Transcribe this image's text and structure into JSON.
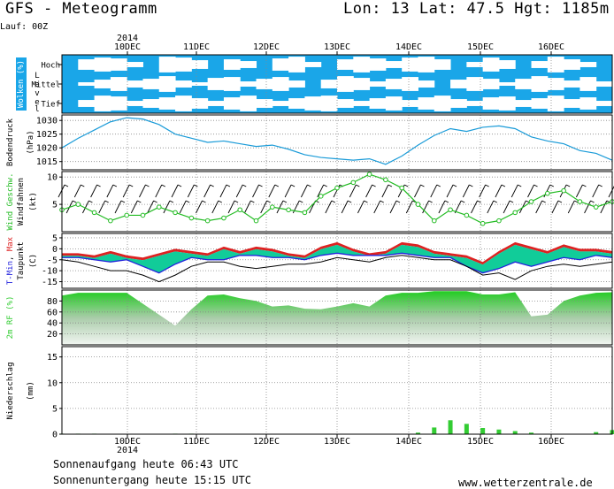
{
  "header": {
    "title": "GFS - Meteogramm",
    "location": "Lon: 13 Lat: 47.5 Hgt: 1185m",
    "run": "Lauf: 00Z"
  },
  "footer": {
    "sunrise": "Sonnenaufgang heute 06:43 UTC",
    "sunset": "Sonnenuntergang heute 15:15 UTC",
    "site": "www.wetterzentrale.de"
  },
  "time_axis": {
    "year": "2014",
    "days": [
      "10DEC",
      "11DEC",
      "12DEC",
      "13DEC",
      "14DEC",
      "15DEC",
      "16DEC"
    ],
    "range_hours": [
      0,
      204
    ]
  },
  "colors": {
    "cloud_bg": "#1aa6e8",
    "cloud": "#ffffff",
    "pressure": "#1a9bd8",
    "wind": "#22bb22",
    "tmax": "#dd2222",
    "tmin": "#2222dd",
    "temp_fill": "#11cc99",
    "rh_fill": "#33cc33",
    "precip": "#33cc33"
  },
  "chart_data": [
    {
      "type": "heatmap",
      "panel": "clouds",
      "ylabel": "Wolken (%)",
      "side_label": "Level",
      "levels": [
        "Hoch",
        "Mittel",
        "Tief"
      ],
      "x": [
        0,
        6,
        12,
        18,
        24,
        30,
        36,
        42,
        48,
        54,
        60,
        66,
        72,
        78,
        84,
        90,
        96,
        102,
        108,
        114,
        120,
        126,
        132,
        138,
        144,
        150,
        156,
        162,
        168,
        174,
        180,
        186,
        192,
        198
      ],
      "clear_fraction": {
        "Hoch": [
          0,
          0.6,
          0.8,
          0.7,
          0.3,
          0,
          0.9,
          0.8,
          0.5,
          0,
          0.6,
          0.4,
          0,
          0.7,
          0.9,
          0.3,
          0,
          0.6,
          0.9,
          0.7,
          0.4,
          0.8,
          0.9,
          0.6,
          0,
          0.3,
          0.8,
          0.5,
          0,
          0.4,
          0.9,
          0.6,
          0.3,
          0
        ],
        "Mittel": [
          0,
          0.2,
          0.5,
          0.8,
          0.4,
          0.6,
          0.9,
          0.4,
          0.2,
          0.7,
          0.8,
          0.3,
          0.6,
          0.8,
          0.4,
          0,
          0.5,
          0.9,
          0.7,
          0.3,
          0.6,
          0.8,
          0.4,
          0,
          0.5,
          0.8,
          0.6,
          0.2,
          0.6,
          0.9,
          0.7,
          0.4,
          0.8,
          0.3
        ],
        "Tief": [
          0,
          0.4,
          0.9,
          0.8,
          0.3,
          0.5,
          0.7,
          0.9,
          0.6,
          0.3,
          0.7,
          0.9,
          0.5,
          0.3,
          0.6,
          0.8,
          0.9,
          0.5,
          0.3,
          0.6,
          0.8,
          0.4,
          0.7,
          0.9,
          0.5,
          0.3,
          0.7,
          0.8,
          0.4,
          0.6,
          0.9,
          0.5,
          0.7,
          0.3
        ]
      }
    },
    {
      "type": "line",
      "panel": "pressure",
      "ylabel": "Bodendruck (hPa)",
      "ylim": [
        1012,
        1032
      ],
      "yticks": [
        1015,
        1020,
        1025,
        1030
      ],
      "x": [
        0,
        6,
        12,
        18,
        24,
        30,
        36,
        42,
        48,
        54,
        60,
        66,
        72,
        78,
        84,
        90,
        96,
        102,
        108,
        114,
        120,
        126,
        132,
        138,
        144,
        150,
        156,
        162,
        168,
        174,
        180,
        186,
        192,
        198,
        204
      ],
      "values": [
        1020,
        1023.5,
        1026.5,
        1029.5,
        1031,
        1030.5,
        1028.5,
        1025,
        1023.5,
        1022,
        1022.5,
        1021.5,
        1020.5,
        1021,
        1019.5,
        1017.5,
        1016.5,
        1016,
        1015.5,
        1016,
        1014,
        1017,
        1021,
        1024.5,
        1027,
        1026,
        1027.5,
        1028,
        1027,
        1024,
        1022.5,
        1021.5,
        1019,
        1018,
        1015.5
      ]
    },
    {
      "type": "line",
      "panel": "wind",
      "ylabel": "Wind Geschw. Windfahnen (kt)",
      "ylim": [
        0,
        11
      ],
      "yticks": [
        5,
        10
      ],
      "x": [
        0,
        6,
        12,
        18,
        24,
        30,
        36,
        42,
        48,
        54,
        60,
        66,
        72,
        78,
        84,
        90,
        96,
        102,
        108,
        114,
        120,
        126,
        132,
        138,
        144,
        150,
        156,
        162,
        168,
        174,
        180,
        186,
        192,
        198,
        204
      ],
      "values": [
        4,
        5,
        3.5,
        2,
        3,
        3,
        4.5,
        3.5,
        2.5,
        2,
        2.5,
        4,
        2,
        4.5,
        4,
        3.5,
        6.5,
        8,
        9,
        10.5,
        9.5,
        8,
        5,
        2,
        4,
        3,
        1.5,
        2,
        3.5,
        5.5,
        7,
        7.5,
        5.5,
        4.5,
        5.5
      ]
    },
    {
      "type": "area",
      "panel": "temperature",
      "ylabel": "T-Min, Max Taupunkt (C)",
      "ylim": [
        -18,
        7
      ],
      "yticks": [
        -15,
        -10,
        -5,
        0,
        5
      ],
      "x": [
        0,
        6,
        12,
        18,
        24,
        30,
        36,
        42,
        48,
        54,
        60,
        66,
        72,
        78,
        84,
        90,
        96,
        102,
        108,
        114,
        120,
        126,
        132,
        138,
        144,
        150,
        156,
        162,
        168,
        174,
        180,
        186,
        192,
        198,
        204
      ],
      "series": [
        {
          "name": "T-Max",
          "values": [
            -2,
            -2,
            -3,
            -1,
            -3,
            -4,
            -2,
            0,
            -1,
            -2,
            1,
            -1,
            1,
            0,
            -2,
            -3,
            1,
            3,
            0,
            -2,
            -1,
            3,
            2,
            -1,
            -2,
            -3,
            -6,
            -1,
            3,
            1,
            -1,
            2,
            0,
            0,
            -1
          ]
        },
        {
          "name": "T-Min",
          "values": [
            -4,
            -4,
            -5,
            -6,
            -5,
            -8,
            -11,
            -7,
            -4,
            -5,
            -5,
            -3,
            -3,
            -4,
            -4,
            -5,
            -3,
            -2,
            -3,
            -3,
            -3,
            -2,
            -3,
            -4,
            -4,
            -8,
            -11,
            -9,
            -6,
            -8,
            -6,
            -4,
            -5,
            -3,
            -4
          ]
        },
        {
          "name": "Taupunkt",
          "values": [
            -5,
            -6,
            -8,
            -10,
            -10,
            -12,
            -15,
            -12,
            -8,
            -6,
            -6,
            -8,
            -9,
            -8,
            -7,
            -7,
            -6,
            -4,
            -5,
            -6,
            -4,
            -3,
            -4,
            -5,
            -5,
            -8,
            -12,
            -11,
            -14,
            -10,
            -8,
            -7,
            -8,
            -7,
            -6
          ]
        }
      ]
    },
    {
      "type": "area",
      "panel": "humidity",
      "ylabel": "2m RF (%)",
      "ylim": [
        0,
        100
      ],
      "yticks": [
        20,
        40,
        60,
        80
      ],
      "x": [
        0,
        6,
        12,
        18,
        24,
        30,
        36,
        42,
        48,
        54,
        60,
        66,
        72,
        78,
        84,
        90,
        96,
        102,
        108,
        114,
        120,
        126,
        132,
        138,
        144,
        150,
        156,
        162,
        168,
        174,
        180,
        186,
        192,
        198,
        204
      ],
      "values": [
        90,
        95,
        95,
        95,
        95,
        75,
        55,
        35,
        65,
        90,
        92,
        85,
        80,
        70,
        72,
        66,
        65,
        70,
        76,
        70,
        90,
        95,
        95,
        98,
        98,
        98,
        92,
        92,
        96,
        52,
        55,
        80,
        90,
        95,
        96
      ]
    },
    {
      "type": "bar",
      "panel": "precipitation",
      "ylabel": "Niederschlag (mm)",
      "ylim": [
        0,
        17
      ],
      "yticks": [
        0,
        5,
        10,
        15
      ],
      "x": [
        0,
        6,
        12,
        18,
        24,
        30,
        36,
        42,
        48,
        54,
        60,
        66,
        72,
        78,
        84,
        90,
        96,
        102,
        108,
        114,
        120,
        126,
        132,
        138,
        144,
        150,
        156,
        162,
        168,
        174,
        180,
        186,
        192,
        198,
        204
      ],
      "values": [
        0.1,
        0.1,
        0.1,
        0,
        0,
        0,
        0,
        0.1,
        0.1,
        0,
        0,
        0,
        0,
        0,
        0,
        0,
        0,
        0,
        0,
        0,
        0,
        0,
        0.3,
        1.3,
        2.7,
        2,
        1.2,
        0.9,
        0.6,
        0.3,
        0,
        0,
        0,
        0.4,
        0.8
      ]
    }
  ]
}
